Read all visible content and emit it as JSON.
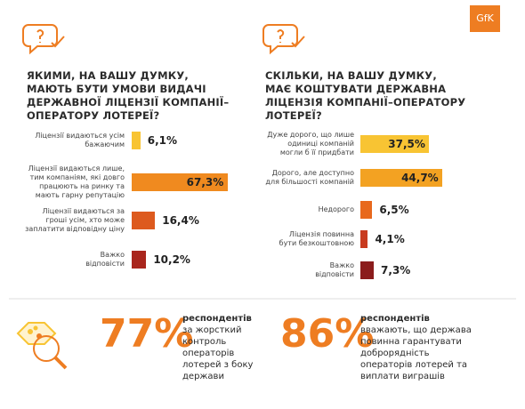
{
  "logo": "GfK",
  "chart_data": [
    {
      "type": "bar",
      "orientation": "horizontal",
      "title": "ЯКИМИ, НА ВАШУ ДУМКУ,\nМАЮТЬ БУТИ УМОВИ ВИДАЧІ\nДЕРЖАВНОЇ ЛІЦЕНЗІЇ КОМПАНІЇ–\nОПЕРАТОРУ ЛОТЕРЕЇ?",
      "categories": [
        "Ліцензії видаються усім\nбажаючим",
        "Ліцензії видаються лише,\nтим компаніям, які довго\nпрацюють на ринку та\nмають гарну репутацію",
        "Ліцензії видаються за\nгроші усім, хто може\nзаплатити відповідну ціну",
        "Важко\nвідповісти"
      ],
      "values": [
        6.1,
        67.3,
        16.4,
        10.2
      ],
      "value_labels": [
        "6,1%",
        "67,3%",
        "16,4%",
        "10,2%"
      ],
      "colors": [
        "#f8c433",
        "#f08a1f",
        "#dd5a1e",
        "#a9261d"
      ]
    },
    {
      "type": "bar",
      "orientation": "horizontal",
      "title": "СКІЛЬКИ, НА ВАШУ ДУМКУ,\nМАЄ КОШТУВАТИ ДЕРЖАВНА\nЛІЦЕНЗІЯ КОМПАНІЇ–ОПЕРАТОРУ\nЛОТЕРЕЇ?",
      "categories": [
        "Дуже дорого, що лише\nодиниці компаній\nмогли б її придбати",
        "Дорого, але доступно\nдля більшості компаній",
        "Недорого",
        "Ліцензія повинна\nбути безкоштовною",
        "Важко\nвідповісти"
      ],
      "values": [
        37.5,
        44.7,
        6.5,
        4.1,
        7.3
      ],
      "value_labels": [
        "37,5%",
        "44,7%",
        "6,5%",
        "4,1%",
        "7,3%"
      ],
      "colors": [
        "#f8c433",
        "#f3a222",
        "#e8691d",
        "#c83b1f",
        "#8b1c1c"
      ]
    }
  ],
  "stats": [
    {
      "value": "77%",
      "heading": "респондентів",
      "text": "за жорсткий\nконтроль\nоператорів\nлотерей з боку\nдержави"
    },
    {
      "value": "86%",
      "heading": "респондентів",
      "text": "вважають, що держава\nповинна гарантувати\nдоброрядність\nоператорів лотерей та\nвиплати виграшів"
    }
  ]
}
